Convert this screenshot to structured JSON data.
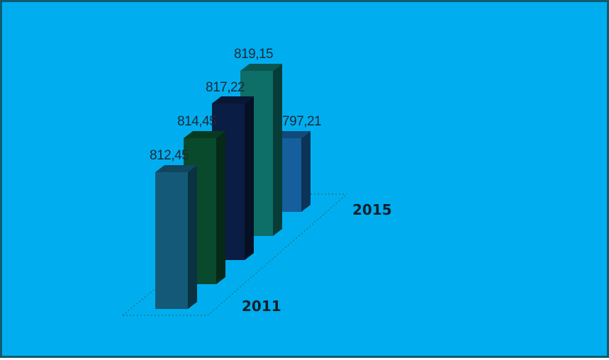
{
  "chart_data": {
    "type": "bar",
    "style": "3d-depth",
    "categories": [
      "2011",
      "",
      "",
      "",
      "2015"
    ],
    "values": [
      812.45,
      814.45,
      817.22,
      819.15,
      797.21
    ],
    "value_labels": [
      "812,45",
      "814,45",
      "817,22",
      "819,15",
      "797,21"
    ],
    "axis_labels": {
      "first": "2011",
      "last": "2015"
    },
    "ylim": [
      790,
      822
    ],
    "title": "",
    "xlabel": "",
    "ylabel": "",
    "grid": false,
    "legend": "none",
    "colors": {
      "background": "#00aeef",
      "frame": "#0e5a6e",
      "bars": [
        "#145a78",
        "#0a4a2c",
        "#0a1d44",
        "#0d6f68",
        "#145f9c"
      ]
    }
  }
}
